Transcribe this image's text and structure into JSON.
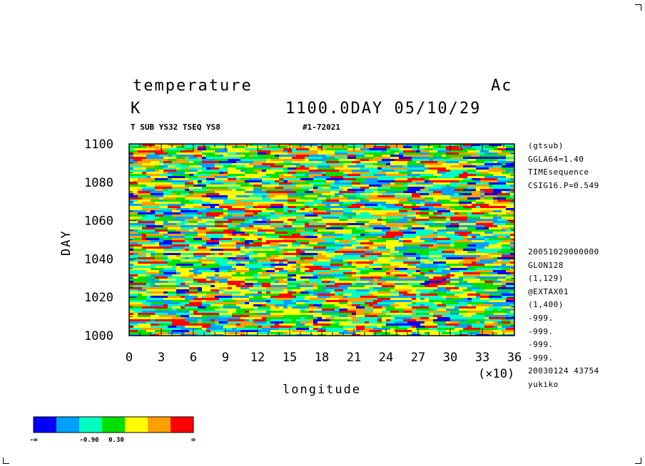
{
  "header": {
    "variable": "temperature",
    "tag": "Ac",
    "unit": "K",
    "time": "1100.0DAY 05/10/29",
    "subtitle": "T SUB YS32 TSEQ YS8",
    "run_id": "#1-72021"
  },
  "side_info": {
    "top": [
      "(gtsub)",
      "GGLA64=1.40",
      "TIMEsequence",
      "CSIG16.P=0.549"
    ],
    "bottom": [
      "20051029000000",
      "GLON128",
      "(1,129)",
      "@EXTAX01",
      "(1,400)",
      "-999.",
      "-999.",
      "-999.",
      "-999.",
      "20030124  43754",
      "yukiko"
    ]
  },
  "chart_data": {
    "type": "heatmap",
    "xlabel": "longitude",
    "ylabel": "DAY",
    "x_multiplier": "(×10)",
    "xlim": [
      0,
      36
    ],
    "ylim": [
      1000,
      1100
    ],
    "x_ticks": [
      "0",
      "3",
      "6",
      "9",
      "12",
      "15",
      "18",
      "21",
      "24",
      "27",
      "30",
      "33",
      "36"
    ],
    "y_ticks": [
      "1000",
      "1020",
      "1040",
      "1060",
      "1080",
      "1100"
    ],
    "colorbar": {
      "colors": [
        "#0000ff",
        "#00a0ff",
        "#00ffc0",
        "#00e000",
        "#ffff00",
        "#ffa000",
        "#ff0000"
      ],
      "labels": [
        "-∞",
        "-0.90",
        "0.30",
        "∞"
      ]
    }
  }
}
